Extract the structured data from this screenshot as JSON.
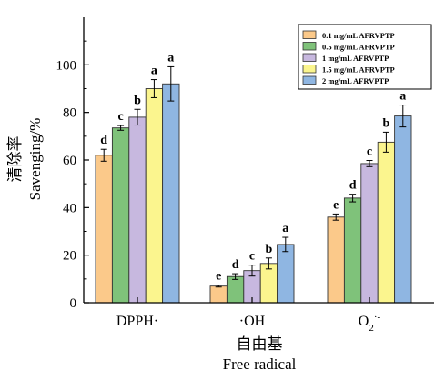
{
  "chart_data": {
    "type": "bar",
    "categories": [
      "DPPH·",
      "·OH",
      "O2·-"
    ],
    "series": [
      {
        "name": "0.1 mg/mL AFRVPTP",
        "color": "#FBC98A",
        "values": [
          62.0,
          7.0,
          36.0
        ],
        "errors": [
          2.5,
          0.4,
          1.3
        ],
        "letters": [
          "d",
          "e",
          "e"
        ]
      },
      {
        "name": "0.5 mg/mL AFRVPTP",
        "color": "#7FC27A",
        "values": [
          73.5,
          11.0,
          44.0
        ],
        "errors": [
          1.0,
          1.2,
          1.6
        ],
        "letters": [
          "c",
          "d",
          "d"
        ]
      },
      {
        "name": "1 mg/mL AFRVPTP",
        "color": "#C7B8DF",
        "values": [
          78.0,
          13.5,
          58.5
        ],
        "errors": [
          3.3,
          2.3,
          1.3
        ],
        "letters": [
          "b",
          "c",
          "c"
        ]
      },
      {
        "name": "1.5 mg/mL AFRVPTP",
        "color": "#FBF58E",
        "values": [
          90.0,
          16.5,
          67.5
        ],
        "errors": [
          3.8,
          2.3,
          4.2
        ],
        "letters": [
          "a",
          "b",
          "b"
        ]
      },
      {
        "name": "2 mg/mL AFRVPTP",
        "color": "#8FB6E2",
        "values": [
          92.0,
          24.5,
          78.5
        ],
        "errors": [
          7.2,
          3.0,
          4.6
        ],
        "letters": [
          "a",
          "a",
          "a"
        ]
      }
    ],
    "ylim": [
      0,
      120
    ],
    "yticks": [
      0,
      20,
      40,
      60,
      80,
      100
    ],
    "ylabel_cn": "清除率",
    "ylabel": "Savenging/%",
    "xlabel_cn": "自由基",
    "xlabel": "Free radical",
    "legend_position": "top-right"
  }
}
